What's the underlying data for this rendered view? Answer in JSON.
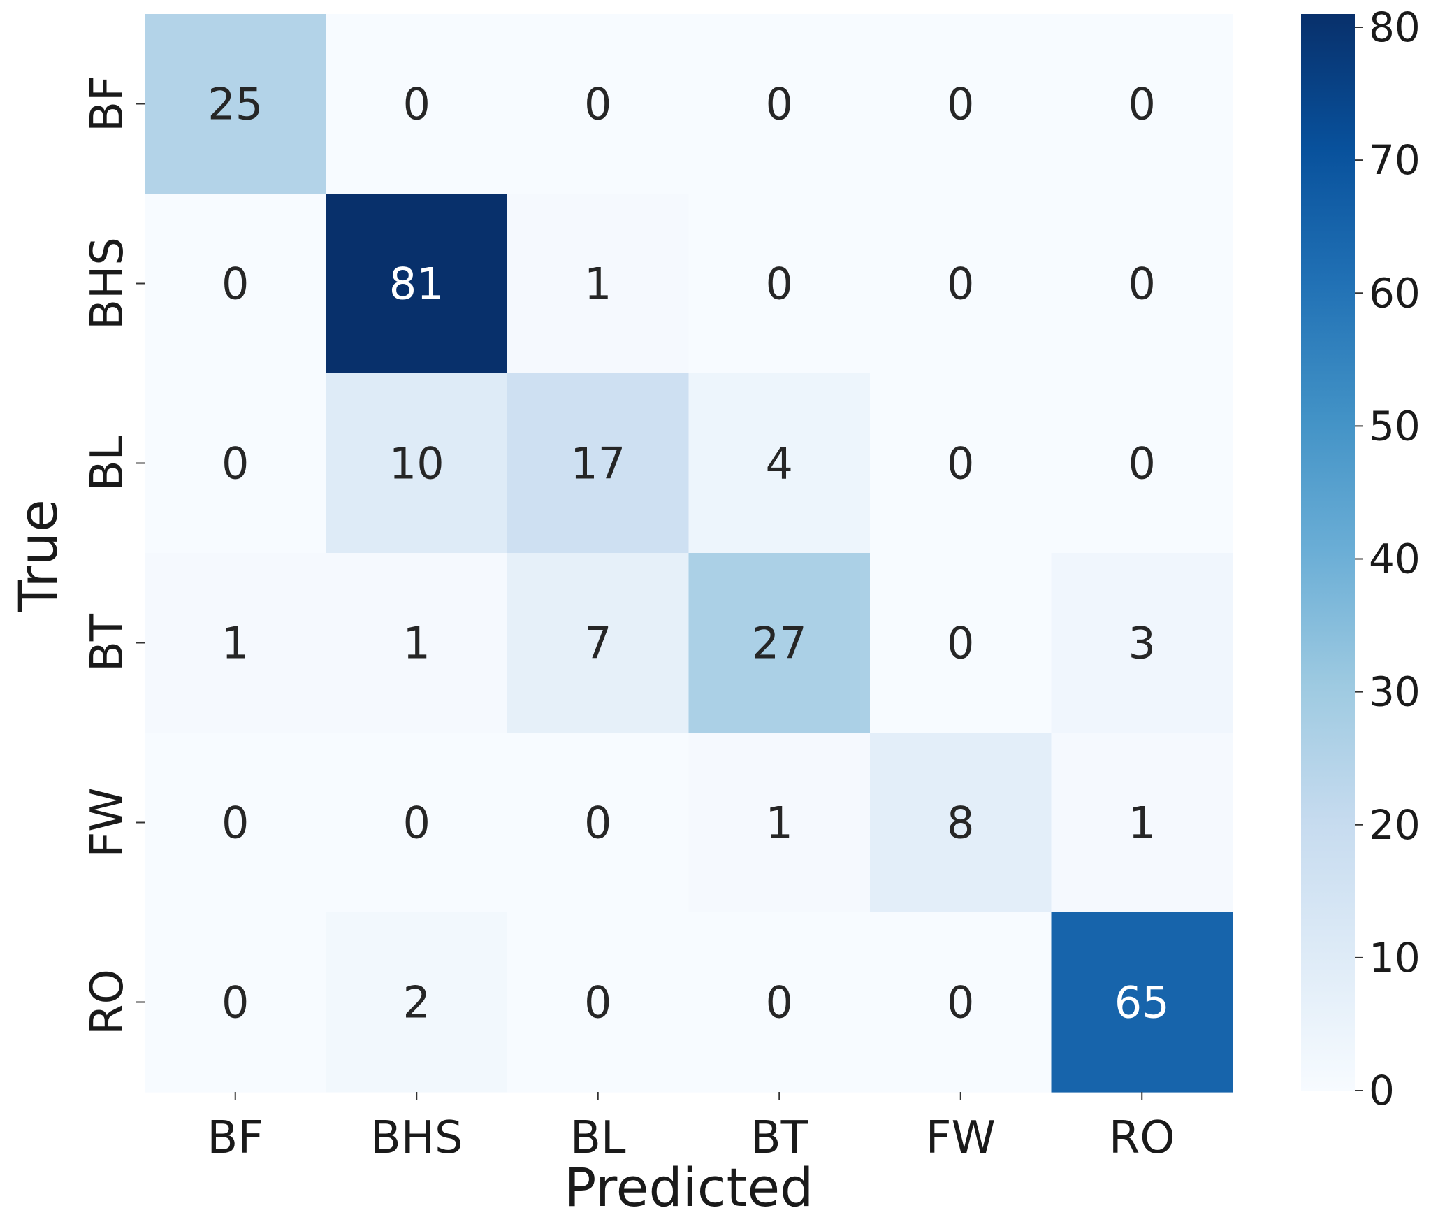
{
  "chart_data": {
    "type": "heatmap",
    "title": "",
    "xlabel": "Predicted",
    "ylabel": "True",
    "x_categories": [
      "BF",
      "BHS",
      "BL",
      "BT",
      "FW",
      "RO"
    ],
    "y_categories": [
      "BF",
      "BHS",
      "BL",
      "BT",
      "FW",
      "RO"
    ],
    "values": [
      [
        25,
        0,
        0,
        0,
        0,
        0
      ],
      [
        0,
        81,
        1,
        0,
        0,
        0
      ],
      [
        0,
        10,
        17,
        4,
        0,
        0
      ],
      [
        1,
        1,
        7,
        27,
        0,
        3
      ],
      [
        0,
        0,
        0,
        1,
        8,
        1
      ],
      [
        0,
        2,
        0,
        0,
        0,
        65
      ]
    ],
    "colormap": "Blues",
    "colorbar": {
      "min": 0,
      "max": 81,
      "ticks": [
        0,
        10,
        20,
        30,
        40,
        50,
        60,
        70,
        80
      ],
      "placement": "right"
    }
  }
}
